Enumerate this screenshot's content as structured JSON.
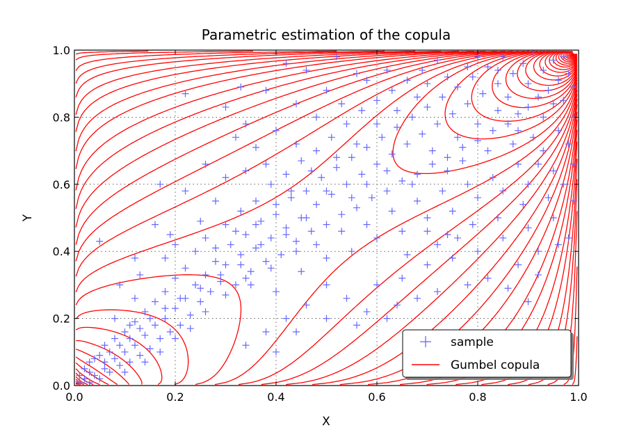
{
  "chart_data": {
    "type": "scatter",
    "title": "Parametric estimation of the copula",
    "xlabel": "X",
    "ylabel": "Y",
    "xlim": [
      0.0,
      1.0
    ],
    "ylim": [
      0.0,
      1.0
    ],
    "xticks": [
      "0.0",
      "0.2",
      "0.4",
      "0.6",
      "0.8",
      "1.0"
    ],
    "yticks": [
      "0.0",
      "0.2",
      "0.4",
      "0.6",
      "0.8",
      "1.0"
    ],
    "grid": true,
    "legend_position": "bottom-right",
    "series": [
      {
        "name": "sample",
        "kind": "scatter",
        "marker": "+",
        "color": "#6666ff",
        "points": [
          [
            0.01,
            0.01
          ],
          [
            0.02,
            0.02
          ],
          [
            0.01,
            0.03
          ],
          [
            0.03,
            0.01
          ],
          [
            0.02,
            0.05
          ],
          [
            0.04,
            0.03
          ],
          [
            0.05,
            0.02
          ],
          [
            0.03,
            0.07
          ],
          [
            0.06,
            0.05
          ],
          [
            0.05,
            0.09
          ],
          [
            0.07,
            0.04
          ],
          [
            0.08,
            0.08
          ],
          [
            0.09,
            0.06
          ],
          [
            0.06,
            0.12
          ],
          [
            0.1,
            0.1
          ],
          [
            0.11,
            0.07
          ],
          [
            0.08,
            0.14
          ],
          [
            0.12,
            0.12
          ],
          [
            0.13,
            0.09
          ],
          [
            0.1,
            0.16
          ],
          [
            0.14,
            0.15
          ],
          [
            0.12,
            0.19
          ],
          [
            0.15,
            0.11
          ],
          [
            0.16,
            0.18
          ],
          [
            0.17,
            0.14
          ],
          [
            0.14,
            0.22
          ],
          [
            0.18,
            0.2
          ],
          [
            0.19,
            0.16
          ],
          [
            0.2,
            0.23
          ],
          [
            0.16,
            0.25
          ],
          [
            0.21,
            0.18
          ],
          [
            0.22,
            0.26
          ],
          [
            0.18,
            0.28
          ],
          [
            0.23,
            0.21
          ],
          [
            0.24,
            0.3
          ],
          [
            0.2,
            0.32
          ],
          [
            0.25,
            0.25
          ],
          [
            0.26,
            0.33
          ],
          [
            0.22,
            0.35
          ],
          [
            0.27,
            0.28
          ],
          [
            0.28,
            0.37
          ],
          [
            0.24,
            0.4
          ],
          [
            0.29,
            0.31
          ],
          [
            0.3,
            0.36
          ],
          [
            0.31,
            0.42
          ],
          [
            0.26,
            0.44
          ],
          [
            0.32,
            0.3
          ],
          [
            0.33,
            0.39
          ],
          [
            0.34,
            0.45
          ],
          [
            0.3,
            0.48
          ],
          [
            0.35,
            0.34
          ],
          [
            0.36,
            0.41
          ],
          [
            0.37,
            0.49
          ],
          [
            0.33,
            0.52
          ],
          [
            0.38,
            0.37
          ],
          [
            0.39,
            0.44
          ],
          [
            0.4,
            0.51
          ],
          [
            0.36,
            0.55
          ],
          [
            0.41,
            0.39
          ],
          [
            0.42,
            0.47
          ],
          [
            0.43,
            0.56
          ],
          [
            0.39,
            0.6
          ],
          [
            0.44,
            0.43
          ],
          [
            0.45,
            0.5
          ],
          [
            0.46,
            0.58
          ],
          [
            0.42,
            0.63
          ],
          [
            0.47,
            0.46
          ],
          [
            0.48,
            0.54
          ],
          [
            0.49,
            0.62
          ],
          [
            0.45,
            0.67
          ],
          [
            0.5,
            0.48
          ],
          [
            0.51,
            0.57
          ],
          [
            0.52,
            0.65
          ],
          [
            0.48,
            0.7
          ],
          [
            0.53,
            0.51
          ],
          [
            0.54,
            0.6
          ],
          [
            0.55,
            0.68
          ],
          [
            0.51,
            0.74
          ],
          [
            0.56,
            0.53
          ],
          [
            0.57,
            0.63
          ],
          [
            0.58,
            0.71
          ],
          [
            0.54,
            0.78
          ],
          [
            0.59,
            0.56
          ],
          [
            0.6,
            0.66
          ],
          [
            0.61,
            0.74
          ],
          [
            0.57,
            0.82
          ],
          [
            0.62,
            0.58
          ],
          [
            0.63,
            0.69
          ],
          [
            0.64,
            0.77
          ],
          [
            0.6,
            0.85
          ],
          [
            0.65,
            0.61
          ],
          [
            0.66,
            0.72
          ],
          [
            0.67,
            0.8
          ],
          [
            0.63,
            0.88
          ],
          [
            0.68,
            0.63
          ],
          [
            0.69,
            0.75
          ],
          [
            0.7,
            0.83
          ],
          [
            0.66,
            0.91
          ],
          [
            0.71,
            0.66
          ],
          [
            0.72,
            0.78
          ],
          [
            0.73,
            0.86
          ],
          [
            0.69,
            0.94
          ],
          [
            0.74,
            0.68
          ],
          [
            0.75,
            0.81
          ],
          [
            0.76,
            0.89
          ],
          [
            0.72,
            0.97
          ],
          [
            0.77,
            0.71
          ],
          [
            0.78,
            0.84
          ],
          [
            0.79,
            0.92
          ],
          [
            0.8,
            0.73
          ],
          [
            0.81,
            0.87
          ],
          [
            0.82,
            0.95
          ],
          [
            0.83,
            0.76
          ],
          [
            0.84,
            0.9
          ],
          [
            0.85,
            0.98
          ],
          [
            0.86,
            0.78
          ],
          [
            0.87,
            0.93
          ],
          [
            0.88,
            0.81
          ],
          [
            0.89,
            0.96
          ],
          [
            0.9,
            0.83
          ],
          [
            0.91,
            0.99
          ],
          [
            0.92,
            0.86
          ],
          [
            0.93,
            0.94
          ],
          [
            0.94,
            0.88
          ],
          [
            0.95,
            0.97
          ],
          [
            0.96,
            0.91
          ],
          [
            0.97,
            0.85
          ],
          [
            0.98,
            0.93
          ],
          [
            0.99,
            0.89
          ],
          [
            0.97,
            0.98
          ],
          [
            0.12,
            0.26
          ],
          [
            0.09,
            0.3
          ],
          [
            0.17,
            0.6
          ],
          [
            0.16,
            0.48
          ],
          [
            0.22,
            0.87
          ],
          [
            0.05,
            0.43
          ],
          [
            0.12,
            0.38
          ],
          [
            0.13,
            0.33
          ],
          [
            0.3,
            0.83
          ],
          [
            0.33,
            0.89
          ],
          [
            0.34,
            0.78
          ],
          [
            0.38,
            0.88
          ],
          [
            0.42,
            0.96
          ],
          [
            0.46,
            0.94
          ],
          [
            0.52,
            0.98
          ],
          [
            0.56,
            0.93
          ],
          [
            0.5,
            0.88
          ],
          [
            0.44,
            0.84
          ],
          [
            0.4,
            0.76
          ],
          [
            0.36,
            0.71
          ],
          [
            0.3,
            0.62
          ],
          [
            0.28,
            0.55
          ],
          [
            0.25,
            0.49
          ],
          [
            0.2,
            0.42
          ],
          [
            0.19,
            0.45
          ],
          [
            0.18,
            0.38
          ],
          [
            0.22,
            0.58
          ],
          [
            0.26,
            0.66
          ],
          [
            0.32,
            0.74
          ],
          [
            0.34,
            0.64
          ],
          [
            0.38,
            0.66
          ],
          [
            0.44,
            0.72
          ],
          [
            0.48,
            0.8
          ],
          [
            0.53,
            0.84
          ],
          [
            0.58,
            0.91
          ],
          [
            0.62,
            0.94
          ],
          [
            0.6,
            0.78
          ],
          [
            0.56,
            0.72
          ],
          [
            0.52,
            0.68
          ],
          [
            0.47,
            0.64
          ],
          [
            0.43,
            0.58
          ],
          [
            0.4,
            0.54
          ],
          [
            0.36,
            0.48
          ],
          [
            0.32,
            0.46
          ],
          [
            0.28,
            0.41
          ],
          [
            0.35,
            0.3
          ],
          [
            0.4,
            0.28
          ],
          [
            0.45,
            0.34
          ],
          [
            0.5,
            0.38
          ],
          [
            0.55,
            0.4
          ],
          [
            0.6,
            0.44
          ],
          [
            0.65,
            0.46
          ],
          [
            0.7,
            0.5
          ],
          [
            0.75,
            0.52
          ],
          [
            0.8,
            0.56
          ],
          [
            0.85,
            0.58
          ],
          [
            0.9,
            0.6
          ],
          [
            0.95,
            0.64
          ],
          [
            0.99,
            0.66
          ],
          [
            0.98,
            0.72
          ],
          [
            0.93,
            0.7
          ],
          [
            0.88,
            0.66
          ],
          [
            0.83,
            0.62
          ],
          [
            0.78,
            0.6
          ],
          [
            0.73,
            0.58
          ],
          [
            0.68,
            0.55
          ],
          [
            0.63,
            0.52
          ],
          [
            0.58,
            0.48
          ],
          [
            0.53,
            0.46
          ],
          [
            0.48,
            0.42
          ],
          [
            0.44,
            0.4
          ],
          [
            0.39,
            0.35
          ],
          [
            0.34,
            0.32
          ],
          [
            0.3,
            0.27
          ],
          [
            0.26,
            0.22
          ],
          [
            0.23,
            0.17
          ],
          [
            0.2,
            0.14
          ],
          [
            0.17,
            0.1
          ],
          [
            0.14,
            0.07
          ],
          [
            0.1,
            0.04
          ],
          [
            0.6,
            0.3
          ],
          [
            0.65,
            0.32
          ],
          [
            0.7,
            0.36
          ],
          [
            0.75,
            0.38
          ],
          [
            0.8,
            0.4
          ],
          [
            0.85,
            0.44
          ],
          [
            0.9,
            0.47
          ],
          [
            0.95,
            0.5
          ],
          [
            0.99,
            0.55
          ],
          [
            0.92,
            0.4
          ],
          [
            0.88,
            0.36
          ],
          [
            0.82,
            0.32
          ],
          [
            0.78,
            0.3
          ],
          [
            0.72,
            0.28
          ],
          [
            0.68,
            0.26
          ],
          [
            0.64,
            0.24
          ],
          [
            0.58,
            0.22
          ],
          [
            0.54,
            0.26
          ],
          [
            0.5,
            0.3
          ],
          [
            0.46,
            0.24
          ],
          [
            0.42,
            0.2
          ],
          [
            0.38,
            0.16
          ],
          [
            0.34,
            0.12
          ],
          [
            0.44,
            0.16
          ],
          [
            0.5,
            0.2
          ],
          [
            0.56,
            0.18
          ],
          [
            0.62,
            0.2
          ],
          [
            0.4,
            0.1
          ],
          [
            0.9,
            0.25
          ],
          [
            0.92,
            0.33
          ],
          [
            0.96,
            0.42
          ],
          [
            0.98,
            0.44
          ],
          [
            0.86,
            0.29
          ],
          [
            0.76,
            0.44
          ],
          [
            0.66,
            0.39
          ],
          [
            0.72,
            0.42
          ],
          [
            0.7,
            0.46
          ],
          [
            0.67,
            0.6
          ],
          [
            0.62,
            0.64
          ],
          [
            0.58,
            0.6
          ],
          [
            0.55,
            0.56
          ],
          [
            0.5,
            0.58
          ],
          [
            0.46,
            0.5
          ],
          [
            0.42,
            0.45
          ],
          [
            0.37,
            0.42
          ],
          [
            0.33,
            0.36
          ],
          [
            0.29,
            0.33
          ],
          [
            0.25,
            0.29
          ],
          [
            0.21,
            0.26
          ],
          [
            0.18,
            0.23
          ],
          [
            0.15,
            0.2
          ],
          [
            0.11,
            0.18
          ],
          [
            0.08,
            0.2
          ],
          [
            0.07,
            0.1
          ],
          [
            0.03,
            0.04
          ],
          [
            0.04,
            0.08
          ],
          [
            0.06,
            0.07
          ],
          [
            0.09,
            0.12
          ],
          [
            0.11,
            0.14
          ],
          [
            0.13,
            0.17
          ],
          [
            0.64,
            0.82
          ],
          [
            0.68,
            0.86
          ],
          [
            0.7,
            0.9
          ],
          [
            0.74,
            0.92
          ],
          [
            0.78,
            0.95
          ],
          [
            0.8,
            0.98
          ],
          [
            0.84,
            0.94
          ],
          [
            0.86,
            0.86
          ],
          [
            0.9,
            0.9
          ],
          [
            0.93,
            0.8
          ],
          [
            0.95,
            0.84
          ],
          [
            0.99,
            0.8
          ],
          [
            0.96,
            0.76
          ],
          [
            0.91,
            0.74
          ],
          [
            0.87,
            0.72
          ],
          [
            0.82,
            0.7
          ],
          [
            0.77,
            0.67
          ],
          [
            0.74,
            0.64
          ],
          [
            0.71,
            0.7
          ],
          [
            0.76,
            0.74
          ],
          [
            0.8,
            0.78
          ],
          [
            0.84,
            0.82
          ],
          [
            0.88,
            0.76
          ],
          [
            0.92,
            0.66
          ],
          [
            0.97,
            0.6
          ],
          [
            0.94,
            0.56
          ],
          [
            0.89,
            0.54
          ],
          [
            0.84,
            0.5
          ],
          [
            0.79,
            0.48
          ],
          [
            0.74,
            0.45
          ]
        ]
      },
      {
        "name": "Gumbel copula",
        "kind": "contour",
        "color": "#ff0000",
        "theta": 1.5,
        "levels": [
          0.05,
          0.08,
          0.12,
          0.16,
          0.2,
          0.25,
          0.3,
          0.36,
          0.42,
          0.5,
          0.58,
          0.67,
          0.77,
          0.88,
          1.0,
          1.15,
          1.3,
          1.5,
          1.7,
          1.95,
          2.2,
          2.5,
          2.8,
          3.2,
          3.6,
          4.1,
          4.6,
          5.2,
          5.8,
          6.5,
          7.3,
          8.2,
          9.2,
          10.3,
          11.5,
          12.8,
          14.2,
          15.7,
          17.3,
          19.0
        ],
        "open_loop_levels": [
          1.6,
          1.95,
          2.5,
          3.2
        ]
      }
    ],
    "legend": [
      {
        "label": "sample",
        "symbol": "+"
      },
      {
        "label": "Gumbel copula",
        "symbol": "line"
      }
    ]
  }
}
